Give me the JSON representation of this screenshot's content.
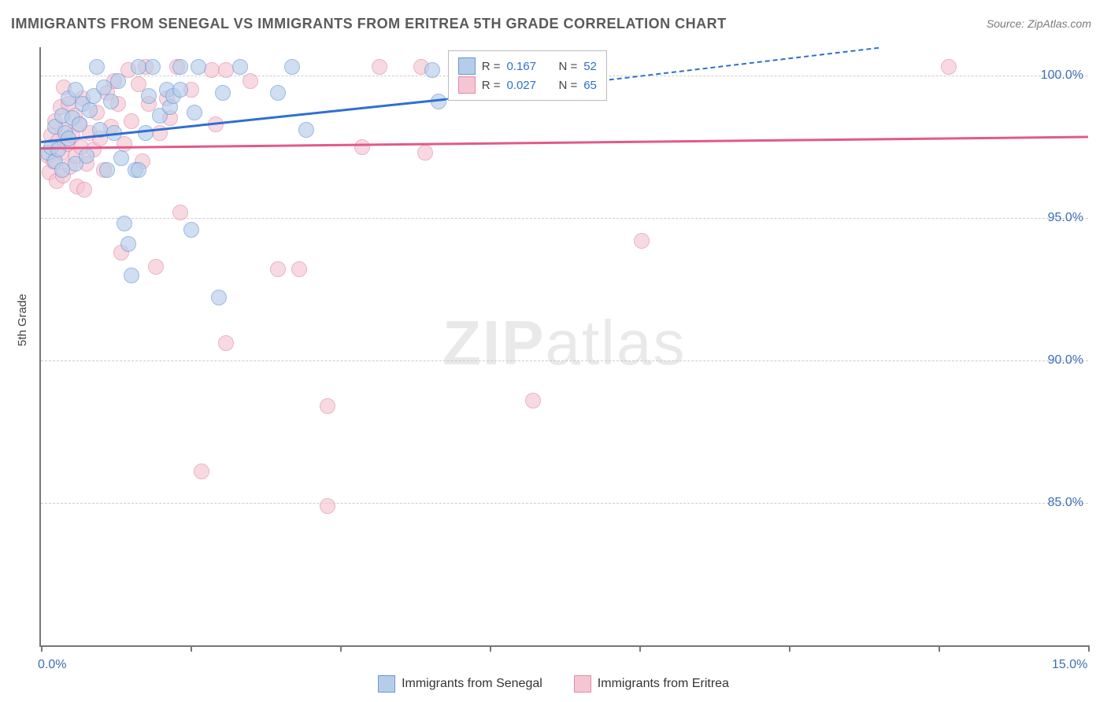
{
  "title": "IMMIGRANTS FROM SENEGAL VS IMMIGRANTS FROM ERITREA 5TH GRADE CORRELATION CHART",
  "source": "Source: ZipAtlas.com",
  "ylabel": "5th Grade",
  "watermark_bold": "ZIP",
  "watermark_rest": "atlas",
  "chart": {
    "type": "scatter",
    "xlim": [
      0.0,
      15.0
    ],
    "ylim": [
      80.0,
      101.0
    ],
    "x_ticks": [
      0.0,
      15.0
    ],
    "x_tick_labels": [
      "0.0%",
      "15.0%"
    ],
    "x_minor_ticks": [
      0.0,
      2.14,
      4.29,
      6.43,
      8.57,
      10.71,
      12.86,
      15.0
    ],
    "y_gridlines": [
      85.0,
      90.0,
      95.0,
      100.0
    ],
    "y_tick_labels": [
      "85.0%",
      "90.0%",
      "95.0%",
      "100.0%"
    ],
    "background_color": "#ffffff",
    "grid_color": "#cccccc",
    "axis_color": "#777777",
    "label_color": "#3b6db5",
    "series": [
      {
        "name": "Immigrants from Senegal",
        "fill_color": "#b6cdea",
        "stroke_color": "#6a97d4",
        "trend_color": "#2f6fd0",
        "r": "0.167",
        "n": "52",
        "trend": {
          "x1": 0.0,
          "y1": 97.7,
          "x2": 5.8,
          "y2": 99.2,
          "x2_ext": 12.0,
          "y2_ext": 101.0
        },
        "points": [
          {
            "x": 0.1,
            "y": 97.3
          },
          {
            "x": 0.15,
            "y": 97.5
          },
          {
            "x": 0.2,
            "y": 97.0
          },
          {
            "x": 0.2,
            "y": 98.2
          },
          {
            "x": 0.25,
            "y": 97.4
          },
          {
            "x": 0.3,
            "y": 98.6
          },
          {
            "x": 0.3,
            "y": 96.7
          },
          {
            "x": 0.35,
            "y": 98.0
          },
          {
            "x": 0.4,
            "y": 99.2
          },
          {
            "x": 0.4,
            "y": 97.8
          },
          {
            "x": 0.45,
            "y": 98.5
          },
          {
            "x": 0.5,
            "y": 96.9
          },
          {
            "x": 0.5,
            "y": 99.5
          },
          {
            "x": 0.55,
            "y": 98.3
          },
          {
            "x": 0.6,
            "y": 99.0
          },
          {
            "x": 0.65,
            "y": 97.2
          },
          {
            "x": 0.7,
            "y": 98.8
          },
          {
            "x": 0.75,
            "y": 99.3
          },
          {
            "x": 0.8,
            "y": 100.3
          },
          {
            "x": 0.85,
            "y": 98.1
          },
          {
            "x": 0.9,
            "y": 99.6
          },
          {
            "x": 0.95,
            "y": 96.7
          },
          {
            "x": 1.0,
            "y": 99.1
          },
          {
            "x": 1.05,
            "y": 98.0
          },
          {
            "x": 1.1,
            "y": 99.8
          },
          {
            "x": 1.15,
            "y": 97.1
          },
          {
            "x": 1.2,
            "y": 94.8
          },
          {
            "x": 1.25,
            "y": 94.1
          },
          {
            "x": 1.3,
            "y": 93.0
          },
          {
            "x": 1.35,
            "y": 96.7
          },
          {
            "x": 1.4,
            "y": 96.7
          },
          {
            "x": 1.4,
            "y": 100.3
          },
          {
            "x": 1.5,
            "y": 98.0
          },
          {
            "x": 1.55,
            "y": 99.3
          },
          {
            "x": 1.6,
            "y": 100.3
          },
          {
            "x": 1.7,
            "y": 98.6
          },
          {
            "x": 1.8,
            "y": 99.5
          },
          {
            "x": 1.85,
            "y": 98.9
          },
          {
            "x": 1.9,
            "y": 99.3
          },
          {
            "x": 2.0,
            "y": 99.5
          },
          {
            "x": 2.0,
            "y": 100.3
          },
          {
            "x": 2.15,
            "y": 94.6
          },
          {
            "x": 2.2,
            "y": 98.7
          },
          {
            "x": 2.25,
            "y": 100.3
          },
          {
            "x": 2.55,
            "y": 92.2
          },
          {
            "x": 2.6,
            "y": 99.4
          },
          {
            "x": 2.85,
            "y": 100.3
          },
          {
            "x": 3.4,
            "y": 99.4
          },
          {
            "x": 3.6,
            "y": 100.3
          },
          {
            "x": 3.8,
            "y": 98.1
          },
          {
            "x": 5.6,
            "y": 100.2
          },
          {
            "x": 5.7,
            "y": 99.1
          }
        ]
      },
      {
        "name": "Immigrants from Eritrea",
        "fill_color": "#f4c6d4",
        "stroke_color": "#e68aa8",
        "trend_color": "#e05a8a",
        "r": "0.027",
        "n": "65",
        "trend": {
          "x1": 0.0,
          "y1": 97.5,
          "x2": 15.0,
          "y2": 97.9
        },
        "points": [
          {
            "x": 0.1,
            "y": 97.2
          },
          {
            "x": 0.12,
            "y": 96.6
          },
          {
            "x": 0.15,
            "y": 97.9
          },
          {
            "x": 0.18,
            "y": 97.0
          },
          {
            "x": 0.2,
            "y": 98.4
          },
          {
            "x": 0.22,
            "y": 96.3
          },
          {
            "x": 0.25,
            "y": 97.7
          },
          {
            "x": 0.28,
            "y": 98.9
          },
          {
            "x": 0.3,
            "y": 97.3
          },
          {
            "x": 0.32,
            "y": 96.5
          },
          {
            "x": 0.35,
            "y": 98.1
          },
          {
            "x": 0.38,
            "y": 97.6
          },
          {
            "x": 0.4,
            "y": 99.0
          },
          {
            "x": 0.42,
            "y": 96.8
          },
          {
            "x": 0.45,
            "y": 97.9
          },
          {
            "x": 0.48,
            "y": 98.6
          },
          {
            "x": 0.5,
            "y": 97.2
          },
          {
            "x": 0.52,
            "y": 96.1
          },
          {
            "x": 0.55,
            "y": 98.3
          },
          {
            "x": 0.58,
            "y": 97.5
          },
          {
            "x": 0.6,
            "y": 99.2
          },
          {
            "x": 0.65,
            "y": 96.9
          },
          {
            "x": 0.7,
            "y": 98.0
          },
          {
            "x": 0.75,
            "y": 97.4
          },
          {
            "x": 0.8,
            "y": 98.7
          },
          {
            "x": 0.85,
            "y": 97.8
          },
          {
            "x": 0.9,
            "y": 96.7
          },
          {
            "x": 0.95,
            "y": 99.4
          },
          {
            "x": 1.0,
            "y": 98.2
          },
          {
            "x": 1.1,
            "y": 99.0
          },
          {
            "x": 1.15,
            "y": 93.8
          },
          {
            "x": 1.2,
            "y": 97.6
          },
          {
            "x": 1.25,
            "y": 100.2
          },
          {
            "x": 1.3,
            "y": 98.4
          },
          {
            "x": 1.4,
            "y": 99.7
          },
          {
            "x": 1.45,
            "y": 97.0
          },
          {
            "x": 1.5,
            "y": 100.3
          },
          {
            "x": 1.55,
            "y": 99.0
          },
          {
            "x": 1.65,
            "y": 93.3
          },
          {
            "x": 1.7,
            "y": 98.0
          },
          {
            "x": 1.8,
            "y": 99.2
          },
          {
            "x": 1.85,
            "y": 98.5
          },
          {
            "x": 1.95,
            "y": 100.3
          },
          {
            "x": 2.0,
            "y": 95.2
          },
          {
            "x": 2.15,
            "y": 99.5
          },
          {
            "x": 2.3,
            "y": 86.1
          },
          {
            "x": 2.45,
            "y": 100.2
          },
          {
            "x": 2.5,
            "y": 98.3
          },
          {
            "x": 2.65,
            "y": 100.2
          },
          {
            "x": 2.65,
            "y": 90.6
          },
          {
            "x": 3.0,
            "y": 99.8
          },
          {
            "x": 3.4,
            "y": 93.2
          },
          {
            "x": 3.7,
            "y": 93.2
          },
          {
            "x": 4.1,
            "y": 88.4
          },
          {
            "x": 4.1,
            "y": 84.9
          },
          {
            "x": 4.6,
            "y": 97.5
          },
          {
            "x": 4.85,
            "y": 100.3
          },
          {
            "x": 5.45,
            "y": 100.3
          },
          {
            "x": 5.5,
            "y": 97.3
          },
          {
            "x": 7.05,
            "y": 88.6
          },
          {
            "x": 8.6,
            "y": 94.2
          },
          {
            "x": 13.0,
            "y": 100.3
          },
          {
            "x": 1.05,
            "y": 99.8
          },
          {
            "x": 0.33,
            "y": 99.6
          },
          {
            "x": 0.62,
            "y": 96.0
          }
        ]
      }
    ]
  },
  "legend": {
    "r_label": "R  =",
    "n_label": "N  ="
  },
  "bottom_legend": [
    "Immigrants from Senegal",
    "Immigrants from Eritrea"
  ]
}
